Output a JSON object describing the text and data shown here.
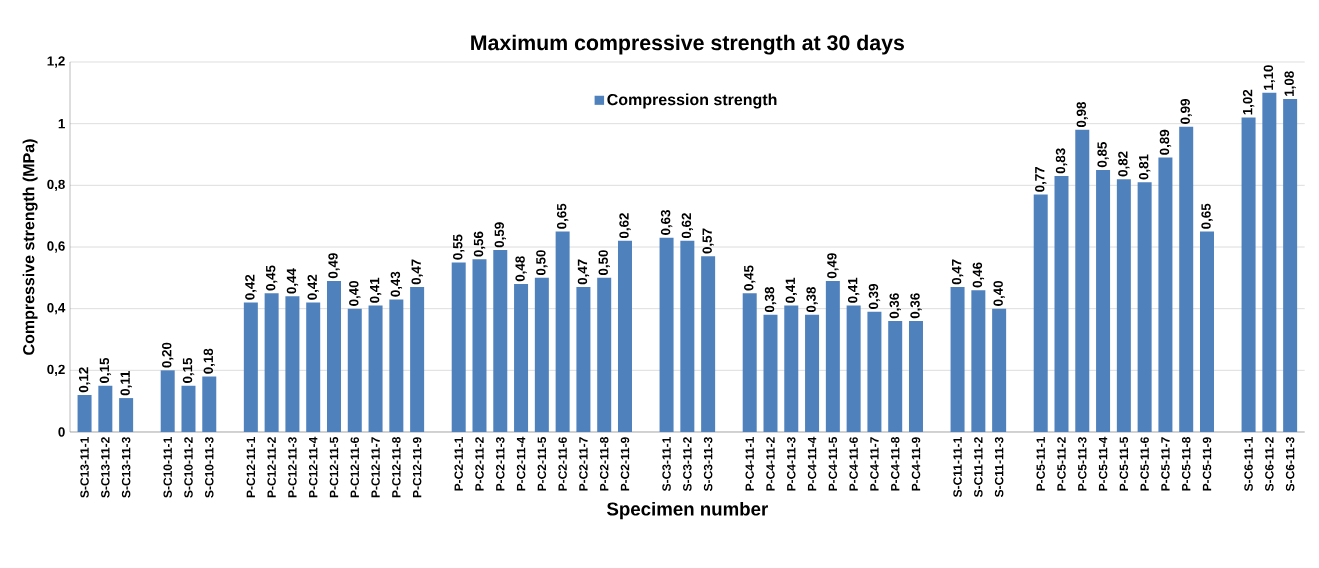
{
  "chart_data": {
    "type": "bar",
    "title": "Maximum compressive strength at 30 days",
    "xlabel": "Specimen number",
    "ylabel": "Compressive strength (MPa)",
    "categories": [
      "S-C13-11-1",
      "S-C13-11-2",
      "S-C13-11-3",
      null,
      "S-C10-11-1",
      "S-C10-11-2",
      "S-C10-11-3",
      null,
      "P-C12-11-1",
      "P-C12-11-2",
      "P-C12-11-3",
      "P-C12-11-4",
      "P-C12-11-5",
      "P-C12-11-6",
      "P-C12-11-7",
      "P-C12-11-8",
      "P-C12-11-9",
      null,
      "P-C2-11-1",
      "P-C2-11-2",
      "P-C2-11-3",
      "P-C2-11-4",
      "P-C2-11-5",
      "P-C2-11-6",
      "P-C2-11-7",
      "P-C2-11-8",
      "P-C2-11-9",
      null,
      "S-C3-11-1",
      "S-C3-11-2",
      "S-C3-11-3",
      null,
      "P-C4-11-1",
      "P-C4-11-2",
      "P-C4-11-3",
      "P-C4-11-4",
      "P-C4-11-5",
      "P-C4-11-6",
      "P-C4-11-7",
      "P-C4-11-8",
      "P-C4-11-9",
      null,
      "S-C11-11-1",
      "S-C11-11-2",
      "S-C11-11-3",
      null,
      "P-C5-11-1",
      "P-C5-11-2",
      "P-C5-11-3",
      "P-C5-11-4",
      "P-C5-11-5",
      "P-C5-11-6",
      "P-C5-11-7",
      "P-C5-11-8",
      "P-C5-11-9",
      null,
      "S-C6-11-1",
      "S-C6-11-2",
      "S-C6-11-3"
    ],
    "series": [
      {
        "name": "Compression strength",
        "color": "#4f81bd",
        "values": [
          0.12,
          0.15,
          0.11,
          null,
          0.2,
          0.15,
          0.18,
          null,
          0.42,
          0.45,
          0.44,
          0.42,
          0.49,
          0.4,
          0.41,
          0.43,
          0.47,
          null,
          0.55,
          0.56,
          0.59,
          0.48,
          0.5,
          0.65,
          0.47,
          0.5,
          0.62,
          null,
          0.63,
          0.62,
          0.57,
          null,
          0.45,
          0.38,
          0.41,
          0.38,
          0.49,
          0.41,
          0.39,
          0.36,
          0.36,
          null,
          0.47,
          0.46,
          0.4,
          null,
          0.77,
          0.83,
          0.98,
          0.85,
          0.82,
          0.81,
          0.89,
          0.99,
          0.65,
          null,
          1.02,
          1.1,
          1.08
        ],
        "value_labels": [
          "0,12",
          "0,15",
          "0,11",
          null,
          "0,20",
          "0,15",
          "0,18",
          null,
          "0,42",
          "0,45",
          "0,44",
          "0,42",
          "0,49",
          "0,40",
          "0,41",
          "0,43",
          "0,47",
          null,
          "0,55",
          "0,56",
          "0,59",
          "0,48",
          "0,50",
          "0,65",
          "0,47",
          "0,50",
          "0,62",
          null,
          "0,63",
          "0,62",
          "0,57",
          null,
          "0,45",
          "0,38",
          "0,41",
          "0,38",
          "0,49",
          "0,41",
          "0,39",
          "0,36",
          "0,36",
          null,
          "0,47",
          "0,46",
          "0,40",
          null,
          "0,77",
          "0,83",
          "0,98",
          "0,85",
          "0,82",
          "0,81",
          "0,89",
          "0,99",
          "0,65",
          null,
          "1,02",
          "1,10",
          "1,08"
        ]
      }
    ],
    "ylim": [
      0,
      1.2
    ],
    "yticks": [
      0,
      {
        "value": 0.2,
        "label": "0,2"
      },
      {
        "value": 0.4,
        "label": "0,4"
      },
      {
        "value": 0.6,
        "label": "0,6"
      },
      {
        "value": 0.8,
        "label": "0,8"
      },
      1,
      {
        "value": 1.2,
        "label": "1,2"
      }
    ],
    "grid": "y",
    "legend": "top"
  }
}
